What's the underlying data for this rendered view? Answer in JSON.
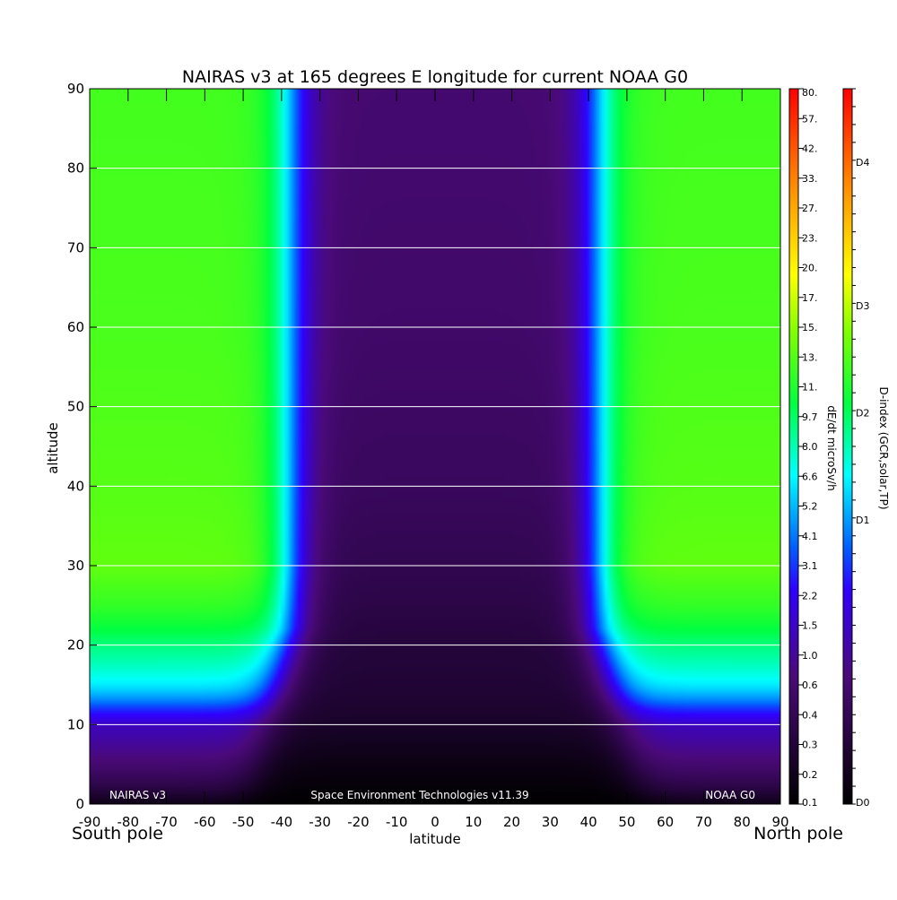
{
  "chart_data": {
    "type": "heatmap",
    "title": "NAIRAS v3 at 165 degrees E longitude for current NOAA G0",
    "xlabel": "latitude",
    "ylabel": "altitude",
    "xlim": [
      -90,
      90
    ],
    "ylim": [
      0,
      90
    ],
    "x_ticks": [
      -90,
      -80,
      -70,
      -60,
      -50,
      -40,
      -30,
      -20,
      -10,
      0,
      10,
      20,
      30,
      40,
      50,
      60,
      70,
      80,
      90
    ],
    "x_tick_labels": [
      "-90",
      "-80",
      "-70",
      "-60",
      "-50",
      "-40",
      "-30",
      "-20",
      "-10",
      "0",
      "10",
      "20",
      "30",
      "40",
      "50",
      "60",
      "70",
      "80",
      "90"
    ],
    "y_ticks": [
      0,
      10,
      20,
      30,
      40,
      50,
      60,
      70,
      80,
      90
    ],
    "y_tick_labels": [
      "0",
      "10",
      "20",
      "30",
      "40",
      "50",
      "60",
      "70",
      "80",
      "90"
    ],
    "grid": "horizontal",
    "corner_labels": {
      "left": "South pole",
      "right": "North pole"
    },
    "footer": {
      "left": "NAIRAS v3",
      "center": "Space Environment Technologies v11.39",
      "right": "NOAA G0"
    },
    "colorbar_dose": {
      "label": "dE/dt microSv/h",
      "ticks": [
        "0.1",
        "0.2",
        "0.3",
        "0.4",
        "0.6",
        "1.0",
        "1.5",
        "2.2",
        "3.1",
        "4.1",
        "5.2",
        "6.6",
        "8.0",
        "9.7",
        "11.",
        "13.",
        "15.",
        "17.",
        "20.",
        "23.",
        "27.",
        "33.",
        "42.",
        "57.",
        "80."
      ]
    },
    "colorbar_dindex": {
      "label": "D-index (GCR,solar,TP)",
      "ticks": [
        "D0",
        "D1",
        "D2",
        "D3",
        "D4"
      ],
      "tick_levels": [
        0,
        1,
        2,
        3,
        4
      ]
    },
    "dose_rate_profile": {
      "description_units": "microSv/h",
      "latitudes": [
        -90,
        -70,
        -60,
        -50,
        -45,
        -40,
        -35,
        -30,
        -20,
        0,
        20,
        30,
        35,
        40,
        45,
        50,
        60,
        70,
        90
      ],
      "altitudes": [
        0,
        5,
        10,
        12,
        15,
        20,
        25,
        30,
        40,
        60,
        90
      ],
      "polar_value_at_altitude": [
        0.12,
        0.3,
        0.5,
        0.9,
        2.0,
        3.4,
        5.5,
        7.0,
        6.6,
        6.2,
        6.0
      ],
      "equatorial_value_at_altitude": [
        0.1,
        0.12,
        0.15,
        0.16,
        0.17,
        0.18,
        0.2,
        0.22,
        0.25,
        0.28,
        0.3
      ],
      "cutoff_latitude_north": 42,
      "cutoff_latitude_south": -37
    }
  }
}
